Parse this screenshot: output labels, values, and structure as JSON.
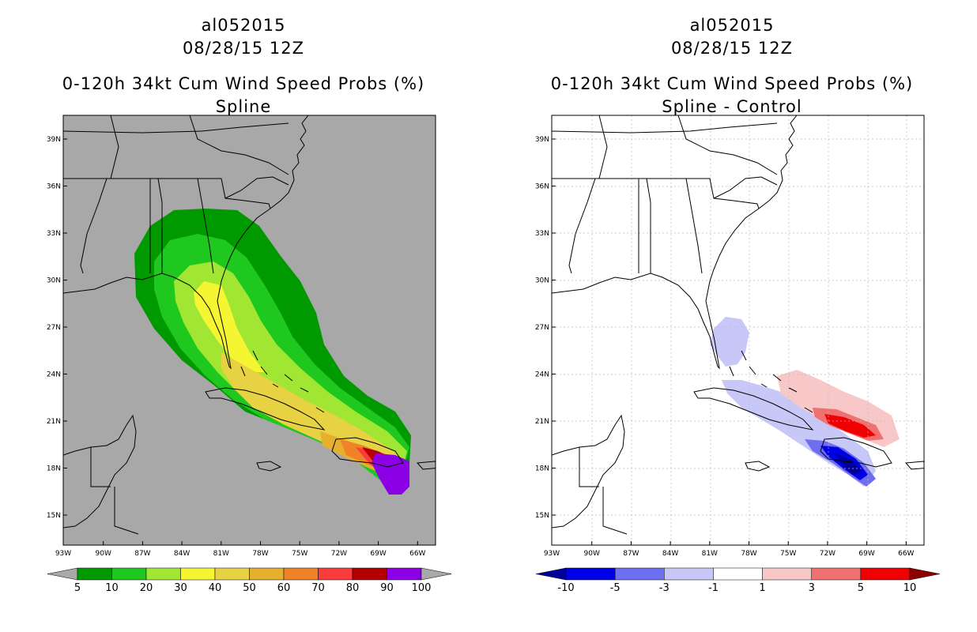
{
  "panels": [
    {
      "id": "left",
      "title_lines": [
        "al052015",
        "08/28/15 12Z",
        "0-120h 34kt Cum Wind Speed Probs (%)",
        "Spline"
      ],
      "lat_ticks": [
        "39N",
        "36N",
        "33N",
        "30N",
        "27N",
        "24N",
        "21N",
        "18N",
        "15N"
      ],
      "lon_ticks": [
        "93W",
        "90W",
        "87W",
        "84W",
        "81W",
        "78W",
        "75W",
        "72W",
        "69W",
        "66W"
      ],
      "colorbar": {
        "labels": [
          "5",
          "10",
          "20",
          "30",
          "40",
          "50",
          "60",
          "70",
          "80",
          "90",
          "100"
        ],
        "colors": [
          "#009a00",
          "#1ec81e",
          "#a0e632",
          "#f5f532",
          "#e6d242",
          "#e6af2e",
          "#f08228",
          "#fa3c3c",
          "#b40000",
          "#8c00e6"
        ],
        "ends": [
          "#a9a9a9",
          "#a9a9a9"
        ]
      },
      "background": "#a8a8a8"
    },
    {
      "id": "right",
      "title_lines": [
        "al052015",
        "08/28/15 12Z",
        "0-120h 34kt Cum Wind Speed Probs (%)",
        "Spline - Control"
      ],
      "lat_ticks": [
        "39N",
        "36N",
        "33N",
        "30N",
        "27N",
        "24N",
        "21N",
        "18N",
        "15N"
      ],
      "lon_ticks": [
        "93W",
        "90W",
        "87W",
        "84W",
        "81W",
        "78W",
        "75W",
        "72W",
        "69W",
        "66W"
      ],
      "colorbar": {
        "labels": [
          "-10",
          "-5",
          "-3",
          "-1",
          "1",
          "3",
          "5",
          "10"
        ],
        "colors": [
          "#0000e6",
          "#6e6ef0",
          "#c8c8f8",
          "#ffffff",
          "#f8c8c8",
          "#f07070",
          "#f00000"
        ],
        "ends": [
          "#00009a",
          "#8c0000"
        ]
      },
      "background": "#ffffff"
    }
  ]
}
